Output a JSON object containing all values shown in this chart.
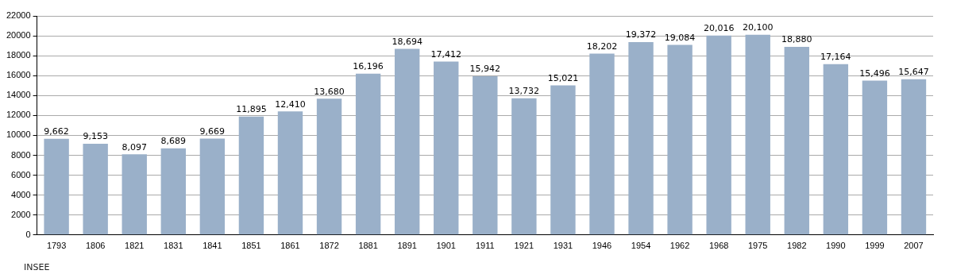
{
  "chart_data": {
    "type": "bar",
    "categories": [
      "1793",
      "1806",
      "1821",
      "1831",
      "1841",
      "1851",
      "1861",
      "1872",
      "1881",
      "1891",
      "1901",
      "1911",
      "1921",
      "1931",
      "1946",
      "1954",
      "1962",
      "1968",
      "1975",
      "1982",
      "1990",
      "1999",
      "2007"
    ],
    "values": [
      9662,
      9153,
      8097,
      8689,
      9669,
      11895,
      12410,
      13680,
      16196,
      18694,
      17412,
      15942,
      13732,
      15021,
      18202,
      19372,
      19084,
      20016,
      20100,
      18880,
      17164,
      15496,
      15647
    ],
    "value_labels": [
      "9,662",
      "9,153",
      "8,097",
      "8,689",
      "9,669",
      "11,895",
      "12,410",
      "13,680",
      "16,196",
      "18,694",
      "17,412",
      "15,942",
      "13,732",
      "15,021",
      "18,202",
      "19,372",
      "19,084",
      "20,016",
      "20,100",
      "18,880",
      "17,164",
      "15,496",
      "15,647"
    ],
    "color": "#9ab0c9",
    "ylim": [
      0,
      22000
    ],
    "yticks": [
      0,
      2000,
      4000,
      6000,
      8000,
      10000,
      12000,
      14000,
      16000,
      18000,
      20000,
      22000
    ],
    "grid": "y",
    "annotations": [
      "INSEE"
    ]
  }
}
